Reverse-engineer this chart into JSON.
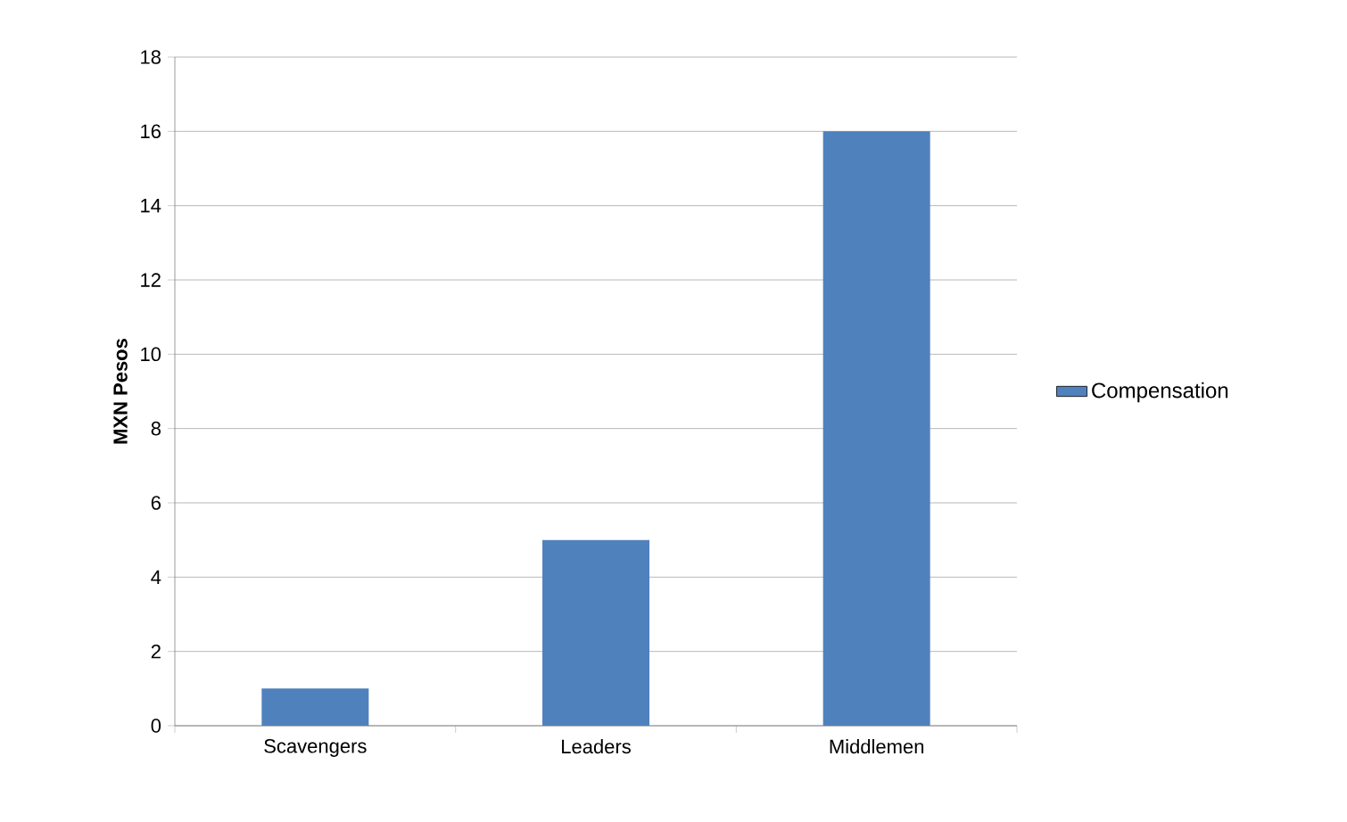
{
  "chart_data": {
    "type": "bar",
    "ylabel": "MXN Pesos",
    "categories": [
      "Scavengers",
      "Leaders",
      "Middlemen"
    ],
    "series": [
      {
        "name": "Compensation",
        "color": "#4f81bd",
        "values": [
          1,
          5,
          16
        ]
      }
    ],
    "ylim": [
      0,
      18
    ],
    "yticks": [
      0,
      2,
      4,
      6,
      8,
      10,
      12,
      14,
      16,
      18
    ],
    "grid": "y",
    "legend": "right"
  }
}
